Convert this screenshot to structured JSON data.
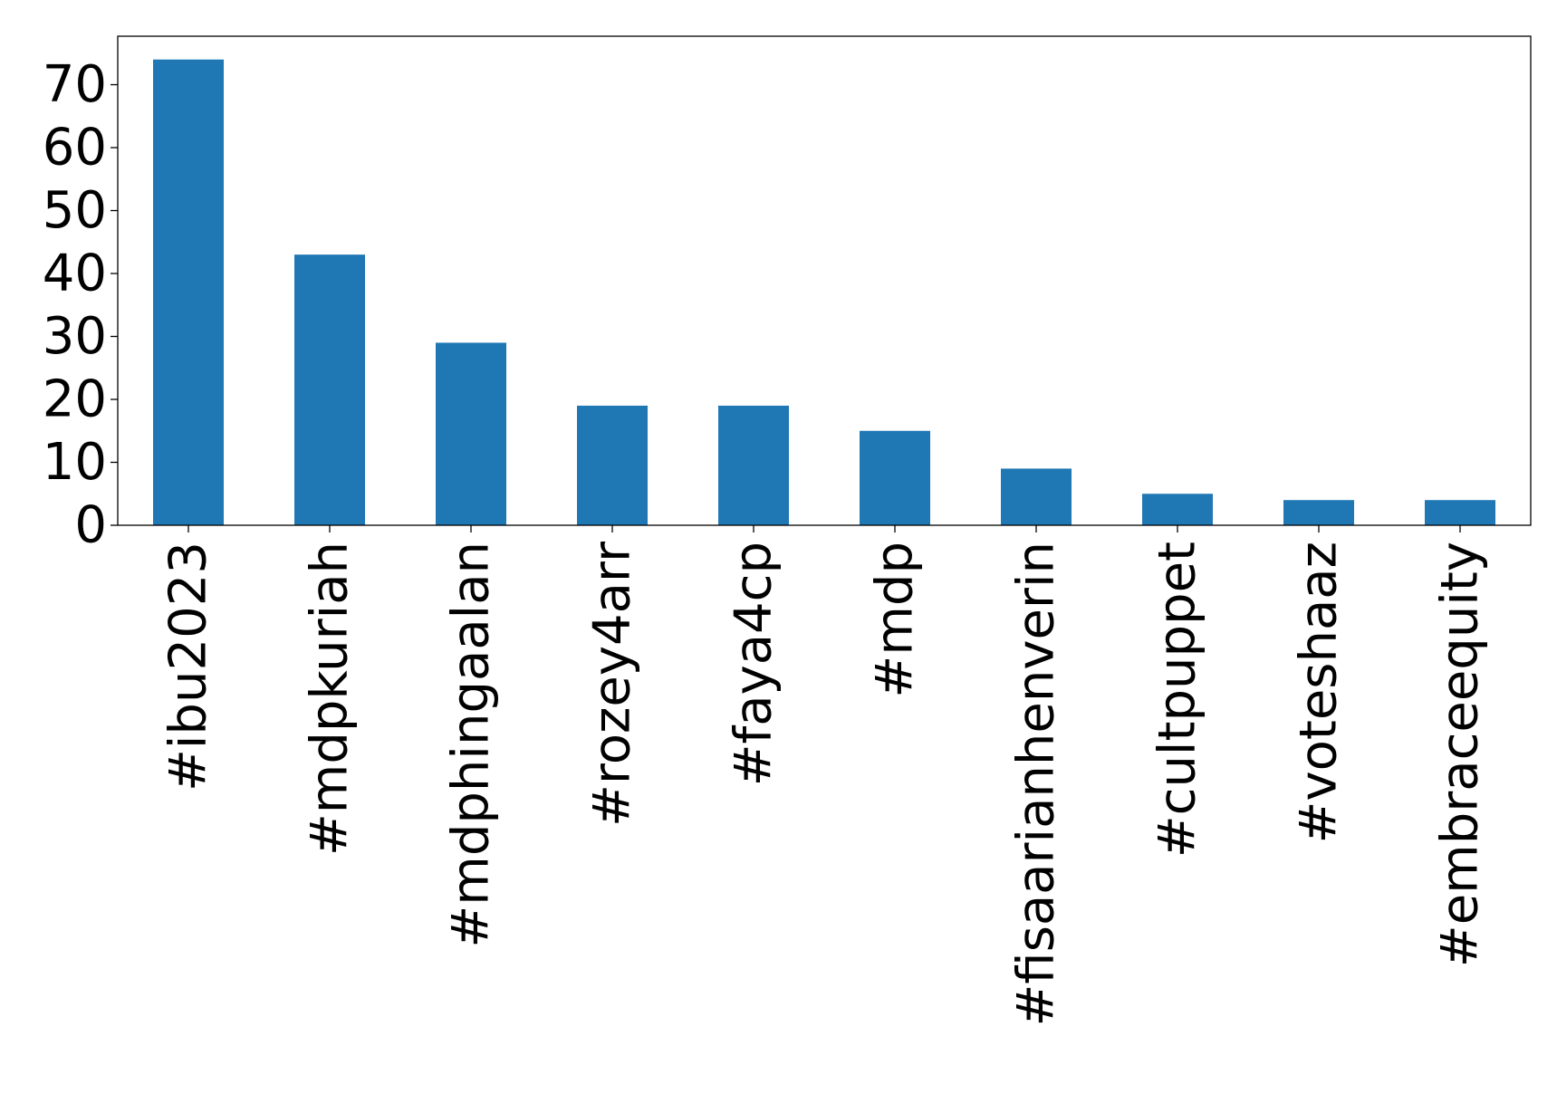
{
  "chart_data": {
    "type": "bar",
    "title": "",
    "xlabel": "",
    "ylabel": "",
    "categories": [
      "#ibu2023",
      "#mdpkuriah",
      "#mdphingaalan",
      "#rozey4arr",
      "#faya4cp",
      "#mdp",
      "#fisaarianhenverin",
      "#cultpuppet",
      "#voteshaaz",
      "#embraceequity"
    ],
    "values": [
      74,
      43,
      29,
      19,
      19,
      15,
      9,
      5,
      4,
      4
    ],
    "ylim": [
      0,
      77.7
    ],
    "yticks": [
      0,
      10,
      20,
      30,
      40,
      50,
      60,
      70
    ],
    "grid": false,
    "legend": "none",
    "bar_color": "#1f77b4"
  }
}
